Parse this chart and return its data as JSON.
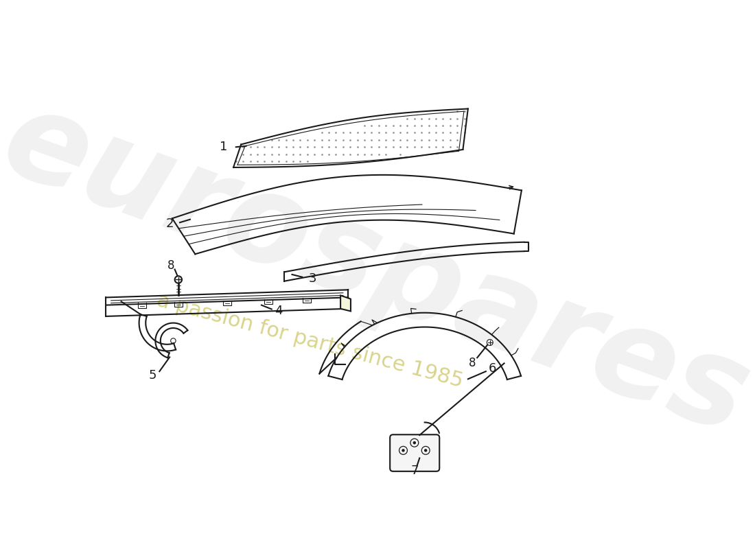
{
  "background_color": "#ffffff",
  "line_color": "#1a1a1a",
  "watermark1": "eurospares",
  "watermark2": "a passion for parts since 1985",
  "wm_color1": "#c8c8c8",
  "wm_color2": "#c0b840"
}
